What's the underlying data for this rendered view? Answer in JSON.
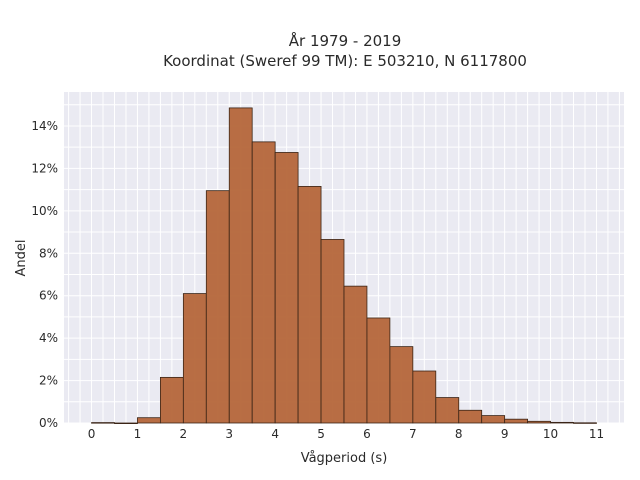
{
  "chart_data": {
    "type": "bar",
    "title": "År 1979 - 2019",
    "subtitle": "Koordinat (Sweref 99 TM): E 503210, N 6117800",
    "xlabel": "Vågperiod (s)",
    "ylabel": "Andel",
    "xlim": [
      -0.6,
      11.6
    ],
    "ylim": [
      0,
      15.6
    ],
    "xticks": [
      0,
      1,
      2,
      3,
      4,
      5,
      6,
      7,
      8,
      9,
      10,
      11
    ],
    "yticks": [
      0,
      2,
      4,
      6,
      8,
      10,
      12,
      14
    ],
    "ytick_suffix": "%",
    "bin_width": 0.5,
    "bins": [
      {
        "x0": 0.0,
        "x1": 0.5,
        "value": 0.02
      },
      {
        "x0": 0.5,
        "x1": 1.0,
        "value": 0.0
      },
      {
        "x0": 1.0,
        "x1": 1.5,
        "value": 0.25
      },
      {
        "x0": 1.5,
        "x1": 2.0,
        "value": 2.15
      },
      {
        "x0": 2.0,
        "x1": 2.5,
        "value": 6.1
      },
      {
        "x0": 2.5,
        "x1": 3.0,
        "value": 10.95
      },
      {
        "x0": 3.0,
        "x1": 3.5,
        "value": 14.85
      },
      {
        "x0": 3.5,
        "x1": 4.0,
        "value": 13.25
      },
      {
        "x0": 4.0,
        "x1": 4.5,
        "value": 12.75
      },
      {
        "x0": 4.5,
        "x1": 5.0,
        "value": 11.15
      },
      {
        "x0": 5.0,
        "x1": 5.5,
        "value": 8.65
      },
      {
        "x0": 5.5,
        "x1": 6.0,
        "value": 6.45
      },
      {
        "x0": 6.0,
        "x1": 6.5,
        "value": 4.95
      },
      {
        "x0": 6.5,
        "x1": 7.0,
        "value": 3.6
      },
      {
        "x0": 7.0,
        "x1": 7.5,
        "value": 2.45
      },
      {
        "x0": 7.5,
        "x1": 8.0,
        "value": 1.2
      },
      {
        "x0": 8.0,
        "x1": 8.5,
        "value": 0.6
      },
      {
        "x0": 8.5,
        "x1": 9.0,
        "value": 0.35
      },
      {
        "x0": 9.0,
        "x1": 9.5,
        "value": 0.18
      },
      {
        "x0": 9.5,
        "x1": 10.0,
        "value": 0.08
      },
      {
        "x0": 10.0,
        "x1": 10.5,
        "value": 0.03
      },
      {
        "x0": 10.5,
        "x1": 11.0,
        "value": 0.01
      }
    ],
    "grid": true,
    "legend": "none",
    "colors": {
      "bar_fill": "#b5663a",
      "bar_stroke": "#3a2416",
      "plot_background": "#eaeaf2",
      "grid": "#ffffff"
    }
  }
}
